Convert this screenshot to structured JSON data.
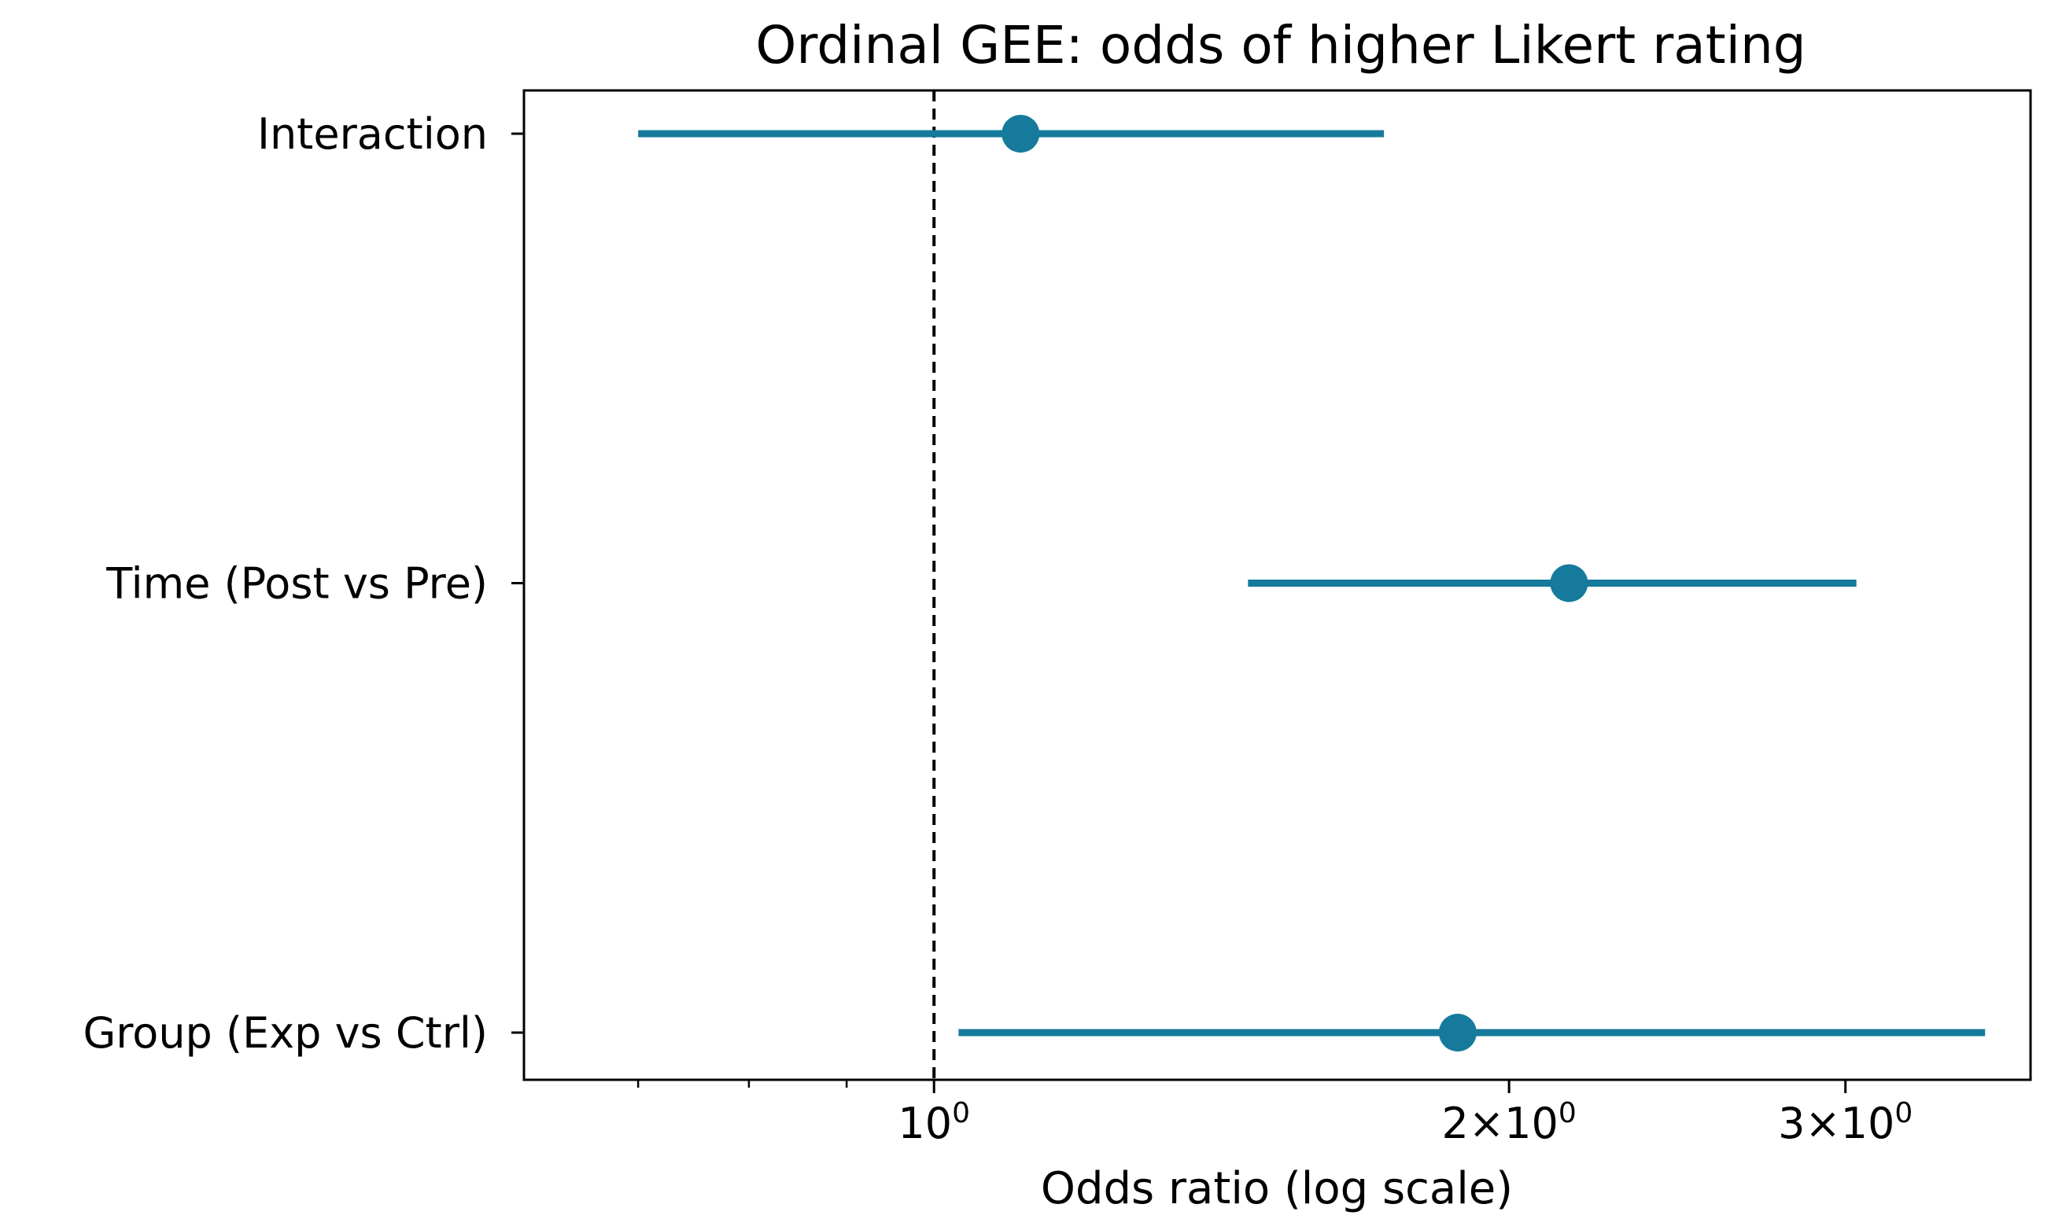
{
  "chart_data": {
    "type": "forest",
    "title": "Ordinal GEE: odds of higher Likert rating",
    "xlabel": "Odds ratio (log scale)",
    "x_scale": "log",
    "xlim": [
      0.61,
      3.75
    ],
    "reference_line": {
      "x": 1.0,
      "style": "dashed",
      "color": "#000000"
    },
    "series_color": "#157a9b",
    "x_ticks_major": [
      {
        "value": 1,
        "label": "10",
        "exp": "0",
        "prefix": ""
      },
      {
        "value": 2,
        "label": "2×10",
        "exp": "0",
        "prefix": ""
      },
      {
        "value": 3,
        "label": "3×10",
        "exp": "0",
        "prefix": ""
      }
    ],
    "x_ticks_minor": [
      0.7,
      0.8,
      0.9
    ],
    "categories": [
      "Interaction",
      "Time (Post vs Pre)",
      "Group (Exp vs Ctrl)"
    ],
    "estimates": [
      {
        "term": "Interaction",
        "or": 1.11,
        "ci_low": 0.7,
        "ci_high": 1.72
      },
      {
        "term": "Time (Post vs Pre)",
        "or": 2.15,
        "ci_low": 1.46,
        "ci_high": 3.04
      },
      {
        "term": "Group (Exp vs Ctrl)",
        "or": 1.88,
        "ci_low": 1.03,
        "ci_high": 3.55
      }
    ]
  }
}
